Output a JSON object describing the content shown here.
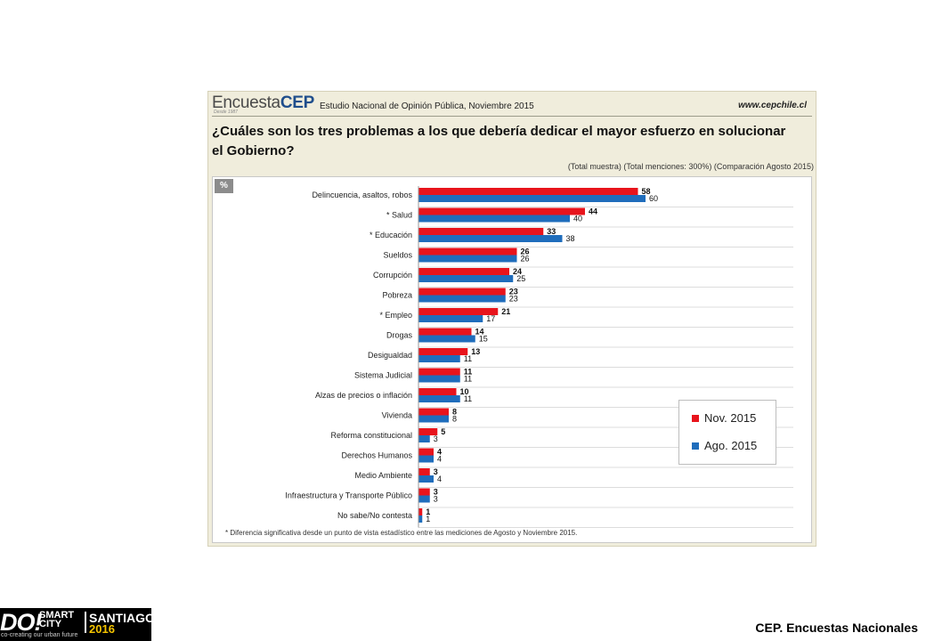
{
  "header": {
    "brand_light": "Encuesta",
    "brand_bold": "CEP",
    "brand_sub": "Desde 1987",
    "study_title": "Estudio Nacional de Opinión Pública, Noviembre 2015",
    "website": "www.cepchile.cl"
  },
  "question": "¿Cuáles son los tres problemas a los que debería dedicar el mayor esfuerzo en solucionar el Gobierno?",
  "sample_note": "(Total muestra) (Total menciones: 300%) (Comparación Agosto 2015)",
  "unit_badge": "%",
  "footnote": "* Diferencia significativa desde un punto de vista estadístico entre las mediciones de Agosto y Noviembre 2015.",
  "chart_data": {
    "type": "bar",
    "orientation": "horizontal",
    "categories": [
      "Delincuencia, asaltos, robos",
      "* Salud",
      "* Educación",
      "Sueldos",
      "Corrupción",
      "Pobreza",
      "* Empleo",
      "Drogas",
      "Desigualdad",
      "Sistema Judicial",
      "Alzas de precios o inflación",
      "Vivienda",
      "Reforma constitucional",
      "Derechos Humanos",
      "Medio Ambiente",
      "Infraestructura y Transporte Público",
      "No sabe/No contesta"
    ],
    "series": [
      {
        "name": "Nov. 2015",
        "color": "#e8141c",
        "values": [
          58,
          44,
          33,
          26,
          24,
          23,
          21,
          14,
          13,
          11,
          10,
          8,
          5,
          4,
          3,
          3,
          1
        ]
      },
      {
        "name": "Ago. 2015",
        "color": "#1f6dbc",
        "values": [
          60,
          40,
          38,
          26,
          25,
          23,
          17,
          15,
          11,
          11,
          11,
          8,
          3,
          4,
          4,
          3,
          1
        ]
      }
    ],
    "xlim": [
      0,
      100
    ],
    "grid": true,
    "legend_position": "bottom-right"
  },
  "footer": {
    "logo_do": "DO!",
    "logo_smart": "SMART",
    "logo_city": "CITY",
    "logo_santiago": "SANTIAGO",
    "logo_year": "2016",
    "logo_tagline": "co-creating our urban future",
    "credit": "CEP. Encuestas Nacionales"
  }
}
